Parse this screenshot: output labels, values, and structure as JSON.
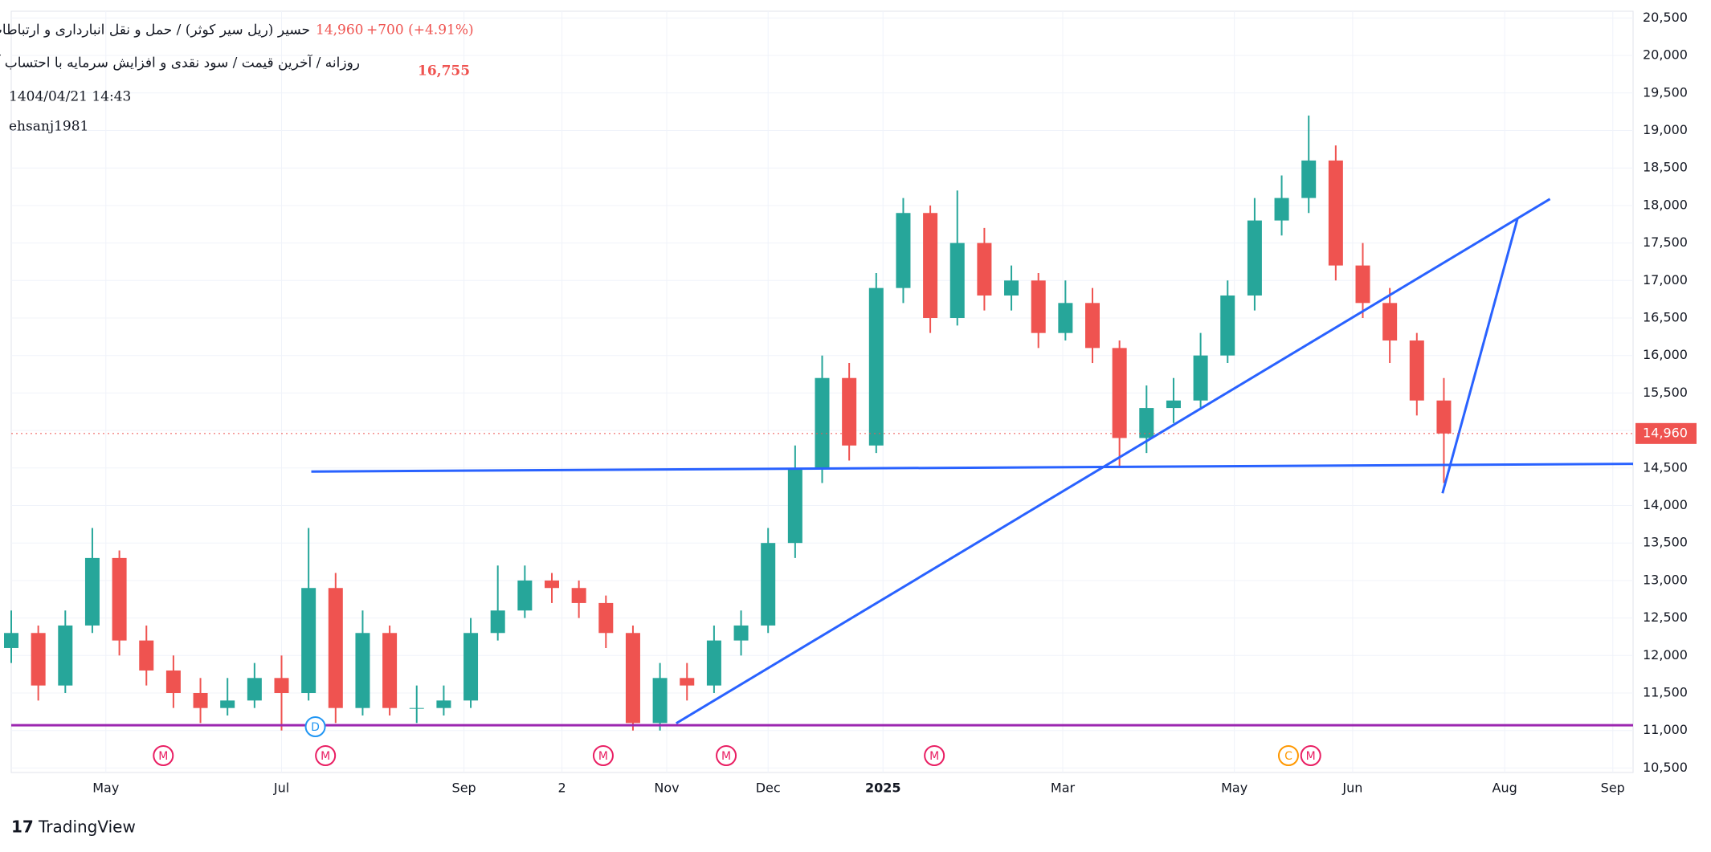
{
  "chart_data": {
    "type": "candlestick",
    "title": "حسیر (ریل سیر کوثر) / حمل و نقل انبارداری و ارتباطات",
    "last_price": 14960,
    "last_price_label": "14,960",
    "change": "+700 (+4.91%)",
    "subtitle": "روزانه / آخرین قیمت / سود نقدی و افزایش سرمایه با احتساب آورده",
    "indicator_value": "16,755",
    "timestamp": "1404/04/21 14:43",
    "author": "ehsanj1981",
    "brand": "TradingView",
    "up_color": "#26a69a",
    "down_color": "#ef5350",
    "ylim": [
      10440,
      20590
    ],
    "yticks": [
      {
        "value": 10500,
        "label": "10,500"
      },
      {
        "value": 11000,
        "label": "11,000"
      },
      {
        "value": 11500,
        "label": "11,500"
      },
      {
        "value": 12000,
        "label": "12,000"
      },
      {
        "value": 12500,
        "label": "12,500"
      },
      {
        "value": 13000,
        "label": "13,000"
      },
      {
        "value": 13500,
        "label": "13,500"
      },
      {
        "value": 14000,
        "label": "14,000"
      },
      {
        "value": 14500,
        "label": "14,500"
      },
      {
        "value": 15000,
        "label": "15,000"
      },
      {
        "value": 15500,
        "label": "15,500"
      },
      {
        "value": 16000,
        "label": "16,000"
      },
      {
        "value": 16500,
        "label": "16,500"
      },
      {
        "value": 17000,
        "label": "17,000"
      },
      {
        "value": 17500,
        "label": "17,500"
      },
      {
        "value": 18000,
        "label": "18,000"
      },
      {
        "value": 18500,
        "label": "18,500"
      },
      {
        "value": 19000,
        "label": "19,000"
      },
      {
        "value": 19500,
        "label": "19,500"
      },
      {
        "value": 20000,
        "label": "20,000"
      },
      {
        "value": 20500,
        "label": "20,500"
      }
    ],
    "xlim": [
      0,
      240
    ],
    "xticks": [
      {
        "value": 14,
        "label": "May"
      },
      {
        "value": 40,
        "label": "Jul"
      },
      {
        "value": 67,
        "label": "Sep"
      },
      {
        "value": 81.5,
        "label": "2"
      },
      {
        "value": 97,
        "label": "Nov"
      },
      {
        "value": 112,
        "label": "Dec"
      },
      {
        "value": 129,
        "label": "2025"
      },
      {
        "value": 155.6,
        "label": "Mar"
      },
      {
        "value": 181,
        "label": "May"
      },
      {
        "value": 198.5,
        "label": "Jun"
      },
      {
        "value": 221,
        "label": "Aug"
      },
      {
        "value": 237,
        "label": "Sep"
      }
    ],
    "grid": true,
    "x": [
      0,
      4,
      8,
      12,
      16,
      20,
      24,
      28,
      32,
      36,
      40,
      44,
      48,
      52,
      56,
      60,
      64,
      68,
      72,
      76,
      80,
      84,
      88,
      92,
      96,
      100,
      104,
      108,
      112,
      116,
      120,
      124,
      128,
      132,
      136,
      140,
      144,
      148,
      152,
      156,
      160,
      164,
      168,
      172,
      176,
      180,
      184,
      188,
      192,
      196,
      200,
      204,
      208,
      212
    ],
    "candles": [
      [
        12100,
        12600,
        11900,
        12300
      ],
      [
        12300,
        12400,
        11400,
        11600
      ],
      [
        11600,
        12600,
        11500,
        12400
      ],
      [
        12400,
        13700,
        12300,
        13300
      ],
      [
        13300,
        13400,
        12000,
        12200
      ],
      [
        12200,
        12400,
        11600,
        11800
      ],
      [
        11800,
        12000,
        11300,
        11500
      ],
      [
        11500,
        11700,
        11100,
        11300
      ],
      [
        11300,
        11700,
        11200,
        11400
      ],
      [
        11400,
        11900,
        11300,
        11700
      ],
      [
        11700,
        12000,
        11000,
        11500
      ],
      [
        11500,
        13700,
        11400,
        12900
      ],
      [
        12900,
        13100,
        11100,
        11300
      ],
      [
        11300,
        12600,
        11200,
        12300
      ],
      [
        12300,
        12400,
        11200,
        11300
      ],
      [
        11300,
        11600,
        11100,
        11300
      ],
      [
        11300,
        11600,
        11200,
        11400
      ],
      [
        11400,
        12500,
        11300,
        12300
      ],
      [
        12300,
        13200,
        12200,
        12600
      ],
      [
        12600,
        13200,
        12500,
        13000
      ],
      [
        13000,
        13100,
        12700,
        12900
      ],
      [
        12900,
        13000,
        12500,
        12700
      ],
      [
        12700,
        12800,
        12100,
        12300
      ],
      [
        12300,
        12400,
        11000,
        11100
      ],
      [
        11100,
        11900,
        11000,
        11700
      ],
      [
        11700,
        11900,
        11400,
        11600
      ],
      [
        11600,
        12400,
        11500,
        12200
      ],
      [
        12200,
        12600,
        12000,
        12400
      ],
      [
        12400,
        13700,
        12300,
        13500
      ],
      [
        13500,
        14800,
        13300,
        14500
      ],
      [
        14500,
        16000,
        14300,
        15700
      ],
      [
        15700,
        15900,
        14600,
        14800
      ],
      [
        14800,
        17100,
        14700,
        16900
      ],
      [
        16900,
        18100,
        16700,
        17900
      ],
      [
        17900,
        18000,
        16300,
        16500
      ],
      [
        16500,
        18200,
        16400,
        17500
      ],
      [
        17500,
        17700,
        16600,
        16800
      ],
      [
        16800,
        17200,
        16600,
        17000
      ],
      [
        17000,
        17100,
        16100,
        16300
      ],
      [
        16300,
        17000,
        16200,
        16700
      ],
      [
        16700,
        16900,
        15900,
        16100
      ],
      [
        16100,
        16200,
        14500,
        14900
      ],
      [
        14900,
        15600,
        14700,
        15300
      ],
      [
        15300,
        15700,
        15100,
        15400
      ],
      [
        15400,
        16300,
        15300,
        16000
      ],
      [
        16000,
        17000,
        15900,
        16800
      ],
      [
        16800,
        18100,
        16600,
        17800
      ],
      [
        17800,
        18400,
        17600,
        18100
      ],
      [
        18100,
        19200,
        17900,
        18600
      ],
      [
        18600,
        18800,
        17000,
        17200
      ],
      [
        17200,
        17500,
        16500,
        16700
      ],
      [
        16700,
        16900,
        15900,
        16200
      ],
      [
        16200,
        16300,
        15200,
        15400
      ],
      [
        15400,
        15700,
        14300,
        14960
      ]
    ],
    "lines": [
      {
        "color": "#2962ff",
        "x": [
          44.4,
          240
        ],
        "y": [
          14453,
          14555
        ]
      },
      {
        "color": "#2962ff",
        "x": [
          98.4,
          227.7
        ],
        "y": [
          11096,
          18087
        ]
      },
      {
        "color": "#2962ff",
        "x": [
          211.8,
          222.9
        ],
        "y": [
          14163,
          17826
        ]
      },
      {
        "color": "#9c27b0",
        "x": [
          0,
          240
        ],
        "y": [
          11070,
          11070
        ]
      }
    ],
    "events": [
      {
        "x": 22.5,
        "label": "M"
      },
      {
        "x": 45,
        "label": "D"
      },
      {
        "x": 46.5,
        "label": "M"
      },
      {
        "x": 87.6,
        "label": "M"
      },
      {
        "x": 105.8,
        "label": "M"
      },
      {
        "x": 136.6,
        "label": "M"
      },
      {
        "x": 189,
        "label": "C"
      },
      {
        "x": 192.3,
        "label": "M"
      }
    ]
  }
}
